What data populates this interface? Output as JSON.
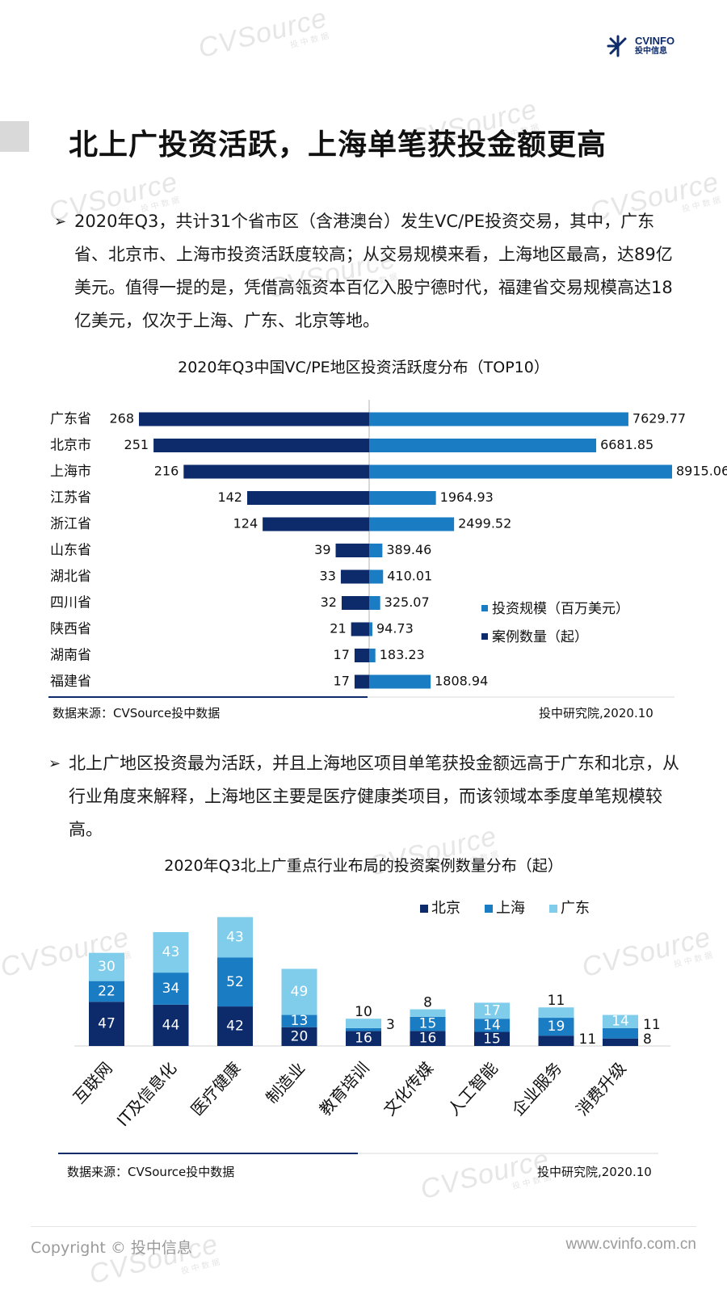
{
  "watermark": {
    "text": "CVSource",
    "sub": "投中数据"
  },
  "logo": {
    "en": "CVINFO",
    "cn": "投中信息"
  },
  "page_title": "北上广投资活跃，上海单笔获投金额更高",
  "para1": "2020年Q3，共计31个省市区（含港澳台）发生VC/PE投资交易，其中，广东省、北京市、上海市投资活跃度较高；从交易规模来看，上海地区最高，达89亿美元。值得一提的是，凭借高瓴资本百亿入股宁德时代，福建省交易规模高达18亿美元，仅次于上海、广东、北京等地。",
  "para2": "北上广地区投资最为活跃，并且上海地区项目单笔获投金额远高于广东和北京，从行业角度来解释，上海地区主要是医疗健康类项目，而该领域本季度单笔规模较高。",
  "bullet": "➢",
  "chart1": {
    "title": "2020年Q3中国VC/PE地区投资活跃度分布（TOP10）",
    "source": "数据来源：CVSource投中数据",
    "credit": "投中研究院,2020.10"
  },
  "chart2": {
    "title": "2020年Q3北上广重点行业布局的投资案例数量分布（起）",
    "source": "数据来源：CVSource投中数据",
    "credit": "投中研究院,2020.10"
  },
  "chart_data": [
    {
      "type": "bar",
      "orientation": "horizontal-butterfly",
      "title": "2020年Q3中国VC/PE地区投资活跃度分布（TOP10）",
      "categories": [
        "广东省",
        "北京市",
        "上海市",
        "江苏省",
        "浙江省",
        "山东省",
        "湖北省",
        "四川省",
        "陕西省",
        "湖南省",
        "福建省"
      ],
      "series": [
        {
          "name": "案例数量（起）",
          "values": [
            268,
            251,
            216,
            142,
            124,
            39,
            33,
            32,
            21,
            17,
            17
          ],
          "color": "#0d2b6b",
          "side": "left"
        },
        {
          "name": "投资规模（百万美元）",
          "values": [
            7629.77,
            6681.85,
            8915.06,
            1964.93,
            2499.52,
            389.46,
            410.01,
            325.07,
            94.73,
            183.23,
            1808.94
          ],
          "color": "#1a7dc4",
          "side": "right"
        }
      ],
      "value_labels": {
        "left": [
          "268",
          "251",
          "216",
          "142",
          "124",
          "39",
          "33",
          "32",
          "21",
          "17",
          "17"
        ],
        "right": [
          "7629.77",
          "6681.85",
          "8915.06",
          "1964.93",
          "2499.52",
          "389.46",
          "410.01",
          "325.07",
          "94.73",
          "183.23",
          "1808.94"
        ]
      },
      "legend": [
        "投资规模（百万美元）",
        "案例数量（起）"
      ],
      "legend_position": "bottom-right",
      "grid": false
    },
    {
      "type": "bar",
      "stacked": true,
      "title": "2020年Q3北上广重点行业布局的投资案例数量分布（起）",
      "categories": [
        "互联网",
        "IT及信息化",
        "医疗健康",
        "制造业",
        "教育培训",
        "文化传媒",
        "人工智能",
        "企业服务",
        "消费升级"
      ],
      "series": [
        {
          "name": "北京",
          "values": [
            47,
            44,
            42,
            20,
            16,
            16,
            15,
            11,
            8
          ],
          "color": "#0d2b6b"
        },
        {
          "name": "上海",
          "values": [
            22,
            34,
            52,
            13,
            3,
            15,
            14,
            19,
            11
          ],
          "color": "#1a7dc4"
        },
        {
          "name": "广东",
          "values": [
            30,
            43,
            43,
            49,
            10,
            8,
            17,
            11,
            14
          ],
          "color": "#7fcdeb"
        }
      ],
      "legend_position": "top-right",
      "grid": false
    }
  ],
  "footer": {
    "copyright": "Copyright © 投中信息",
    "url": "www.cvinfo.com.cn"
  }
}
